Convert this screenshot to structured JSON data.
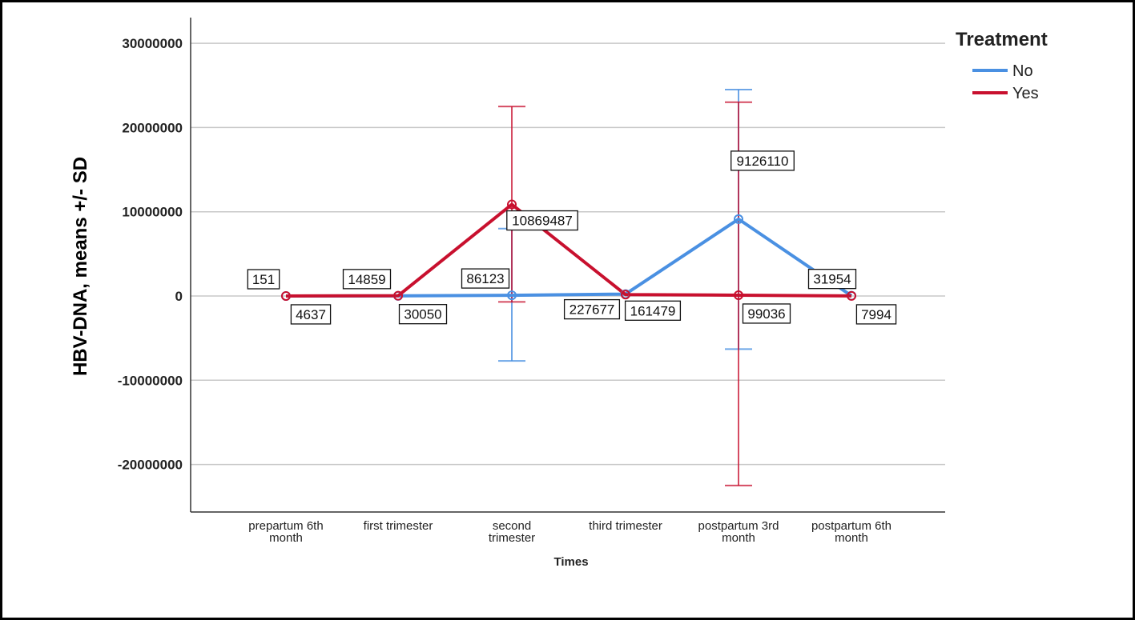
{
  "chart_data": {
    "type": "line",
    "xlabel": "Times",
    "ylabel": "HBV-DNA, means +/- SD",
    "ylim": [
      -25000000,
      32000000
    ],
    "yticks": [
      30000000,
      20000000,
      10000000,
      0,
      -10000000,
      -20000000
    ],
    "ytick_labels": [
      "30000000",
      "20000000",
      "10000000",
      "0",
      "-10000000",
      "-20000000"
    ],
    "categories": [
      [
        "prepartum 6th",
        "month"
      ],
      [
        "first trimester"
      ],
      [
        "second",
        "trimester"
      ],
      [
        "third trimester"
      ],
      [
        "postpartum 3rd",
        "month"
      ],
      [
        "postpartum 6th",
        "month"
      ]
    ],
    "grid": true,
    "legend": {
      "title": "Treatment",
      "placement": "top-right"
    },
    "series": [
      {
        "name": "No",
        "color": "#4a90e2",
        "values": [
          151,
          14859,
          86123,
          227677,
          9126110,
          31954
        ],
        "labels": [
          "151",
          "14859",
          "86123",
          "227677",
          "9126110",
          "31954"
        ],
        "sd_upper": [
          null,
          null,
          8000000,
          null,
          24500000,
          null
        ],
        "sd_lower": [
          null,
          null,
          -7700000,
          null,
          -6300000,
          null
        ]
      },
      {
        "name": "Yes",
        "color": "#c8102e",
        "values": [
          4637,
          30050,
          10869487,
          161479,
          99036,
          7994
        ],
        "labels": [
          "4637",
          "30050",
          "10869487",
          "161479",
          "99036",
          "7994"
        ],
        "sd_upper": [
          null,
          null,
          22500000,
          null,
          23000000,
          null
        ],
        "sd_lower": [
          null,
          null,
          -700000,
          null,
          -22500000,
          null
        ]
      }
    ]
  }
}
